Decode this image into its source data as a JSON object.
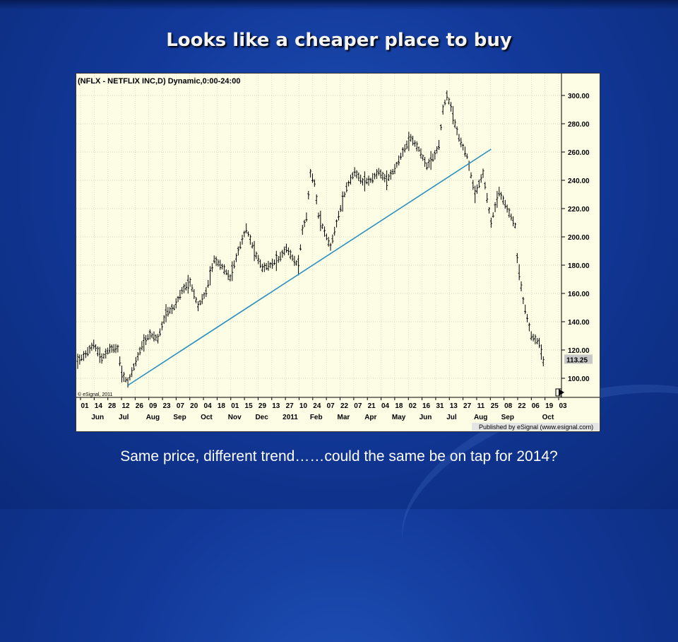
{
  "slide": {
    "title": "Looks like a cheaper place to buy",
    "caption": "Same price, different trend……could the same be on tap for 2014?"
  },
  "colors": {
    "background": "#12399a",
    "chart_background": "#fdfde6",
    "bars": "#000000",
    "trendline": "#2b8fbf",
    "last_price_label": "#c8c8c8"
  },
  "chart": {
    "header": "(NFLX - NETFLIX INC,D) Dynamic,0:00-24:00",
    "copyright": "© eSignal, 2011",
    "publisher": "Published by eSignal (www.esignal.com)",
    "last_price_label": "113.25"
  },
  "chart_data": {
    "type": "ohlc",
    "title": "(NFLX - NETFLIX INC,D) Dynamic,0:00-24:00",
    "ylim": [
      90,
      310
    ],
    "y_ticks": [
      100,
      120,
      140,
      160,
      180,
      200,
      220,
      240,
      260,
      280,
      300
    ],
    "y_tick_labels": [
      "100.00",
      "120.00",
      "140.00",
      "160.00",
      "180.00",
      "200.00",
      "220.00",
      "240.00",
      "260.00",
      "280.00",
      "300.00"
    ],
    "day_labels": [
      "01",
      "14",
      "28",
      "12",
      "26",
      "09",
      "23",
      "07",
      "20",
      "04",
      "18",
      "01",
      "15",
      "29",
      "13",
      "27",
      "10",
      "24",
      "07",
      "22",
      "07",
      "21",
      "04",
      "18",
      "02",
      "16",
      "31",
      "13",
      "27",
      "11",
      "25",
      "08",
      "22",
      "06",
      "19",
      "03"
    ],
    "month_labels": [
      "Jun",
      "Jul",
      "Aug",
      "Sep",
      "Oct",
      "Nov",
      "Dec",
      "2011",
      "Feb",
      "Mar",
      "Apr",
      "May",
      "Jun",
      "Jul",
      "Aug",
      "Sep",
      "Oct"
    ],
    "grid": true,
    "price_path": [
      [
        0,
        112
      ],
      [
        4,
        117
      ],
      [
        8,
        124
      ],
      [
        12,
        114
      ],
      [
        16,
        121
      ],
      [
        20,
        121
      ],
      [
        22,
        103
      ],
      [
        25,
        97
      ],
      [
        28,
        108
      ],
      [
        32,
        123
      ],
      [
        36,
        131
      ],
      [
        40,
        128
      ],
      [
        44,
        146
      ],
      [
        48,
        150
      ],
      [
        52,
        162
      ],
      [
        56,
        168
      ],
      [
        60,
        151
      ],
      [
        64,
        161
      ],
      [
        68,
        184
      ],
      [
        72,
        179
      ],
      [
        76,
        171
      ],
      [
        80,
        190
      ],
      [
        84,
        206
      ],
      [
        88,
        190
      ],
      [
        92,
        178
      ],
      [
        96,
        180
      ],
      [
        100,
        184
      ],
      [
        104,
        192
      ],
      [
        108,
        183
      ],
      [
        110,
        180
      ],
      [
        112,
        205
      ],
      [
        114,
        214
      ],
      [
        116,
        245
      ],
      [
        118,
        238
      ],
      [
        120,
        215
      ],
      [
        124,
        200
      ],
      [
        126,
        193
      ],
      [
        130,
        215
      ],
      [
        134,
        235
      ],
      [
        138,
        246
      ],
      [
        142,
        239
      ],
      [
        146,
        240
      ],
      [
        150,
        246
      ],
      [
        154,
        240
      ],
      [
        158,
        248
      ],
      [
        162,
        260
      ],
      [
        166,
        270
      ],
      [
        170,
        262
      ],
      [
        174,
        250
      ],
      [
        178,
        258
      ],
      [
        180,
        265
      ],
      [
        182,
        290
      ],
      [
        184,
        300
      ],
      [
        186,
        292
      ],
      [
        188,
        280
      ],
      [
        190,
        270
      ],
      [
        194,
        257
      ],
      [
        198,
        230
      ],
      [
        202,
        245
      ],
      [
        206,
        210
      ],
      [
        210,
        232
      ],
      [
        214,
        220
      ],
      [
        218,
        208
      ],
      [
        219,
        185
      ],
      [
        222,
        155
      ],
      [
        226,
        130
      ],
      [
        230,
        125
      ],
      [
        232,
        112
      ]
    ],
    "trendline": {
      "from": [
        25,
        95
      ],
      "to": [
        206,
        262
      ]
    },
    "last_price": 113.25
  }
}
